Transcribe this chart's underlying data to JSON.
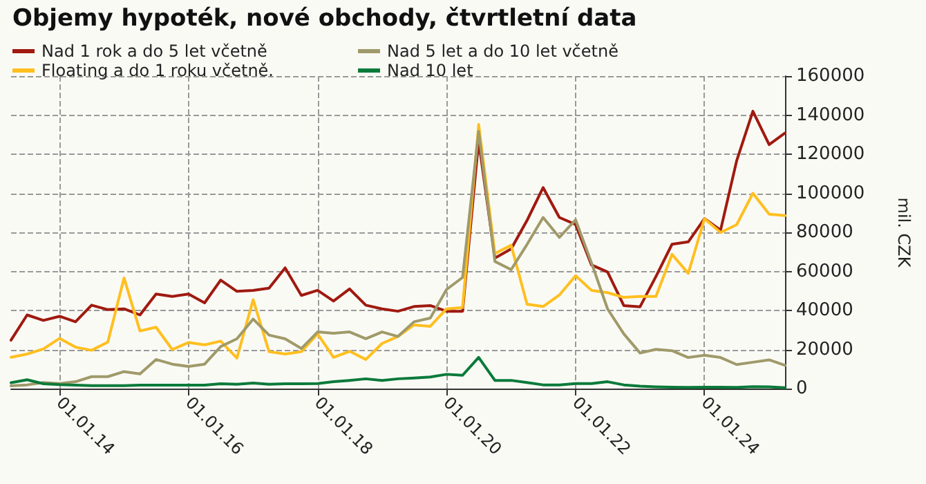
{
  "chart_data": {
    "type": "line",
    "title": "Objemy hypoték, nové obchody, čtvrtletní data",
    "ylabel": "mil. CZK",
    "x": [
      "2013-04",
      "2013-07",
      "2013-10",
      "2014-01",
      "2014-04",
      "2014-07",
      "2014-10",
      "2015-01",
      "2015-04",
      "2015-07",
      "2015-10",
      "2016-01",
      "2016-04",
      "2016-07",
      "2016-10",
      "2017-01",
      "2017-04",
      "2017-07",
      "2017-10",
      "2018-01",
      "2018-04",
      "2018-07",
      "2018-10",
      "2019-01",
      "2019-04",
      "2019-07",
      "2019-10",
      "2020-01",
      "2020-04",
      "2020-07",
      "2020-10",
      "2021-01",
      "2021-04",
      "2021-07",
      "2021-10",
      "2022-01",
      "2022-04",
      "2022-07",
      "2022-10",
      "2023-01",
      "2023-04",
      "2023-07",
      "2023-10",
      "2024-01",
      "2024-04",
      "2024-07",
      "2024-10",
      "2025-01",
      "2025-04"
    ],
    "series": [
      {
        "name": "Nad 1 rok a do 5 let včetně",
        "color": "#a01a10",
        "values": [
          24800,
          37700,
          34900,
          37000,
          34200,
          42700,
          40400,
          40800,
          37700,
          48400,
          47200,
          48400,
          43900,
          55500,
          49800,
          50300,
          51400,
          61800,
          47700,
          50300,
          44800,
          51000,
          42700,
          40800,
          39600,
          42000,
          42500,
          39600,
          39600,
          127000,
          66800,
          71500,
          86100,
          102900,
          87600,
          84000,
          63300,
          59700,
          42500,
          41900,
          57400,
          73900,
          75100,
          87000,
          81100,
          116600,
          142000,
          124900,
          130800
        ]
      },
      {
        "name": "Floating a do 1 roku včetně.",
        "color": "#ffbf1f",
        "values": [
          16000,
          17700,
          20300,
          25700,
          21200,
          19600,
          23800,
          56600,
          29500,
          31400,
          20000,
          23600,
          22400,
          24300,
          15600,
          45500,
          18900,
          17700,
          18900,
          28000,
          16000,
          19100,
          14900,
          23100,
          26700,
          32600,
          31900,
          40800,
          41500,
          135200,
          69100,
          73400,
          43200,
          42000,
          47900,
          57800,
          50300,
          49100,
          46700,
          47200,
          47200,
          68700,
          59000,
          87000,
          79900,
          83900,
          100000,
          89300,
          88600
        ]
      },
      {
        "name": "Nad 5 let a do 10 let včetně",
        "color": "#a09a6a",
        "values": [
          1400,
          1900,
          3100,
          2600,
          3500,
          6100,
          6100,
          8700,
          7500,
          14900,
          12500,
          11300,
          12500,
          21500,
          25500,
          35600,
          27400,
          25500,
          20500,
          29000,
          28300,
          29000,
          25500,
          29000,
          26700,
          34200,
          36100,
          50700,
          56900,
          131700,
          65100,
          60900,
          73800,
          87600,
          77400,
          86400,
          64400,
          40800,
          28000,
          18200,
          20100,
          19400,
          15900,
          17100,
          15900,
          12300,
          13500,
          14700,
          11900
        ]
      },
      {
        "name": "Nad 10 let",
        "color": "#0a7a3a",
        "values": [
          3000,
          4500,
          2500,
          2000,
          1800,
          1500,
          1500,
          1500,
          1800,
          1800,
          1800,
          1800,
          1800,
          2500,
          2200,
          2800,
          2200,
          2500,
          2500,
          2600,
          3500,
          4200,
          5000,
          4200,
          5000,
          5400,
          5900,
          7300,
          6800,
          16000,
          4200,
          4200,
          3100,
          1900,
          1900,
          2600,
          2600,
          3500,
          1900,
          1200,
          900,
          700,
          600,
          700,
          700,
          600,
          1000,
          900,
          400
        ]
      }
    ],
    "xlim": [
      "2013-04",
      "2025-04"
    ],
    "xticks": [
      {
        "value": "2014-01-01",
        "label": "01.01.14"
      },
      {
        "value": "2016-01-01",
        "label": "01.01.16"
      },
      {
        "value": "2018-01-01",
        "label": "01.01.18"
      },
      {
        "value": "2020-01-01",
        "label": "01.01.20"
      },
      {
        "value": "2022-01-01",
        "label": "01.01.22"
      },
      {
        "value": "2024-01-01",
        "label": "01.01.24"
      }
    ],
    "ylim": [
      0,
      160000
    ],
    "yticks": [
      0,
      20000,
      40000,
      60000,
      80000,
      100000,
      120000,
      140000,
      160000
    ],
    "grid": true,
    "legend": "top left",
    "marker": "none",
    "line_style": "solid"
  }
}
